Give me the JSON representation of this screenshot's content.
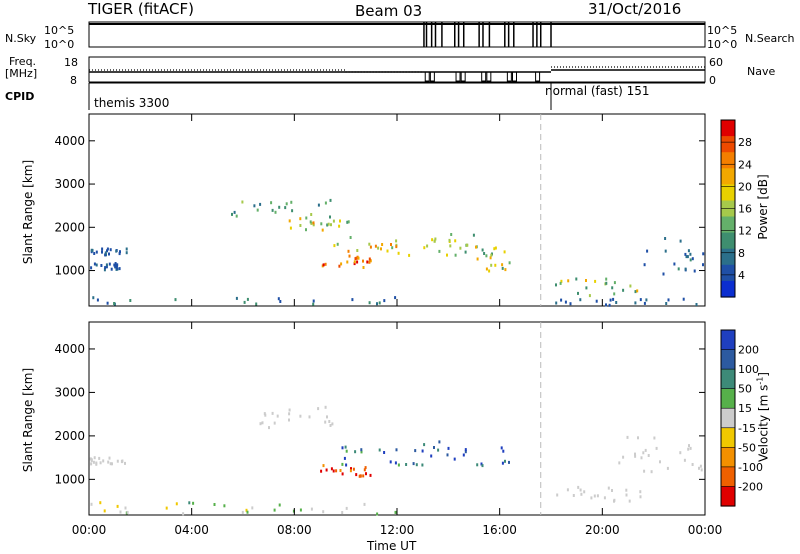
{
  "header": {
    "left_title": "TIGER (fitACF)",
    "center_title": "Beam 03",
    "right_title": "31/Oct/2016"
  },
  "top_panels": {
    "nsky_label": "N.Sky",
    "nsearch_label": "N.Search",
    "nsky_ticks": [
      "10^5",
      "10^0"
    ],
    "nsearch_ticks": [
      "10^5",
      "10^0"
    ],
    "freq_label_line1": "Freq.",
    "freq_label_line2": "[MHz]",
    "freq_ticks": [
      "18",
      "8"
    ],
    "nave_label": "Nave",
    "nave_ticks": [
      "60",
      "0"
    ],
    "cpid_label": "CPID",
    "cpid_left": "themis 3300",
    "cpid_right": "normal (fast) 151",
    "cpid_switch_hour": 18
  },
  "colorbar_power": {
    "label": "Power [dB]",
    "ticks": [
      "28",
      "24",
      "20",
      "16",
      "12",
      "8",
      "4"
    ],
    "colors": [
      "#e00000",
      "#ee4a00",
      "#f47f00",
      "#f2a800",
      "#e8d100",
      "#a6c94b",
      "#64b06a",
      "#3e8e6f",
      "#2b6f8a",
      "#1f4fa6",
      "#0b2ed0"
    ]
  },
  "colorbar_velocity": {
    "label": "Velocity [m s^-1]",
    "ticks": [
      "200",
      "100",
      "50",
      "15",
      "-15",
      "-50",
      "-100",
      "-200"
    ],
    "colors": [
      "#1f3fbf",
      "#2c5aa0",
      "#3d8a78",
      "#56b04a",
      "#cccccc",
      "#f0c800",
      "#f39000",
      "#ef6000",
      "#e00000"
    ]
  },
  "chart_data": {
    "type": "heatmap",
    "title": "TIGER (fitACF) Beam 03 31/Oct/2016",
    "xlabel": "Time UT",
    "x_ticks": [
      "00:00",
      "04:00",
      "08:00",
      "12:00",
      "16:00",
      "20:00",
      "00:00"
    ],
    "xlim_hours": [
      0,
      24
    ],
    "ylabel": "Slant Range [km]",
    "y_ticks": [
      "4000",
      "3000",
      "2000",
      "1000"
    ],
    "ylim_km": [
      180,
      4620
    ],
    "gap_hour": 17.6,
    "panels": [
      {
        "name": "power",
        "colorbar": "Power [dB]",
        "range": [
          0,
          30
        ],
        "scatter_regions": [
          {
            "t": [
              0.0,
              1.5
            ],
            "r": [
              1380,
              1550
            ],
            "v": [
              2,
              6
            ]
          },
          {
            "t": [
              0.0,
              1.2
            ],
            "r": [
              1050,
              1200
            ],
            "v": [
              2,
              6
            ]
          },
          {
            "t": [
              0.0,
              12.0
            ],
            "r": [
              200,
              420
            ],
            "v": [
              2,
              10
            ]
          },
          {
            "t": [
              5.5,
              9.5
            ],
            "r": [
              2250,
              2700
            ],
            "v": [
              6,
              14
            ]
          },
          {
            "t": [
              7.5,
              10.5
            ],
            "r": [
              1950,
              2250
            ],
            "v": [
              10,
              24
            ]
          },
          {
            "t": [
              9.0,
              11.0
            ],
            "r": [
              1100,
              1350
            ],
            "v": [
              20,
              30
            ]
          },
          {
            "t": [
              9.5,
              13.0
            ],
            "r": [
              1350,
              1800
            ],
            "v": [
              12,
              26
            ]
          },
          {
            "t": [
              13.0,
              15.0
            ],
            "r": [
              1350,
              1900
            ],
            "v": [
              8,
              20
            ]
          },
          {
            "t": [
              15.0,
              16.5
            ],
            "r": [
              1000,
              1600
            ],
            "v": [
              8,
              22
            ]
          },
          {
            "t": [
              18.0,
              21.5
            ],
            "r": [
              450,
              850
            ],
            "v": [
              8,
              22
            ]
          },
          {
            "t": [
              21.5,
              24.0
            ],
            "r": [
              850,
              1800
            ],
            "v": [
              2,
              8
            ]
          },
          {
            "t": [
              18.0,
              24.0
            ],
            "r": [
              200,
              380
            ],
            "v": [
              2,
              8
            ]
          }
        ]
      },
      {
        "name": "velocity",
        "colorbar": "Velocity [m s^-1]",
        "range": [
          -200,
          200
        ],
        "scatter_regions": [
          {
            "t": [
              0.0,
              1.5
            ],
            "r": [
              1380,
              1550
            ],
            "v": [
              -15,
              15
            ]
          },
          {
            "t": [
              0.0,
              12.0
            ],
            "r": [
              200,
              500
            ],
            "v": [
              -80,
              80
            ]
          },
          {
            "t": [
              5.5,
              9.5
            ],
            "r": [
              2200,
              2700
            ],
            "v": [
              -15,
              15
            ]
          },
          {
            "t": [
              9.5,
              13.0
            ],
            "r": [
              1350,
              1800
            ],
            "v": [
              60,
              220
            ]
          },
          {
            "t": [
              9.0,
              11.0
            ],
            "r": [
              1100,
              1350
            ],
            "v": [
              -220,
              -60
            ]
          },
          {
            "t": [
              12.5,
              16.5
            ],
            "r": [
              1350,
              1900
            ],
            "v": [
              100,
              220
            ]
          },
          {
            "t": [
              18.0,
              21.5
            ],
            "r": [
              500,
              850
            ],
            "v": [
              -15,
              15
            ]
          },
          {
            "t": [
              20.5,
              24.0
            ],
            "r": [
              1200,
              2000
            ],
            "v": [
              -15,
              15
            ]
          }
        ]
      }
    ]
  }
}
